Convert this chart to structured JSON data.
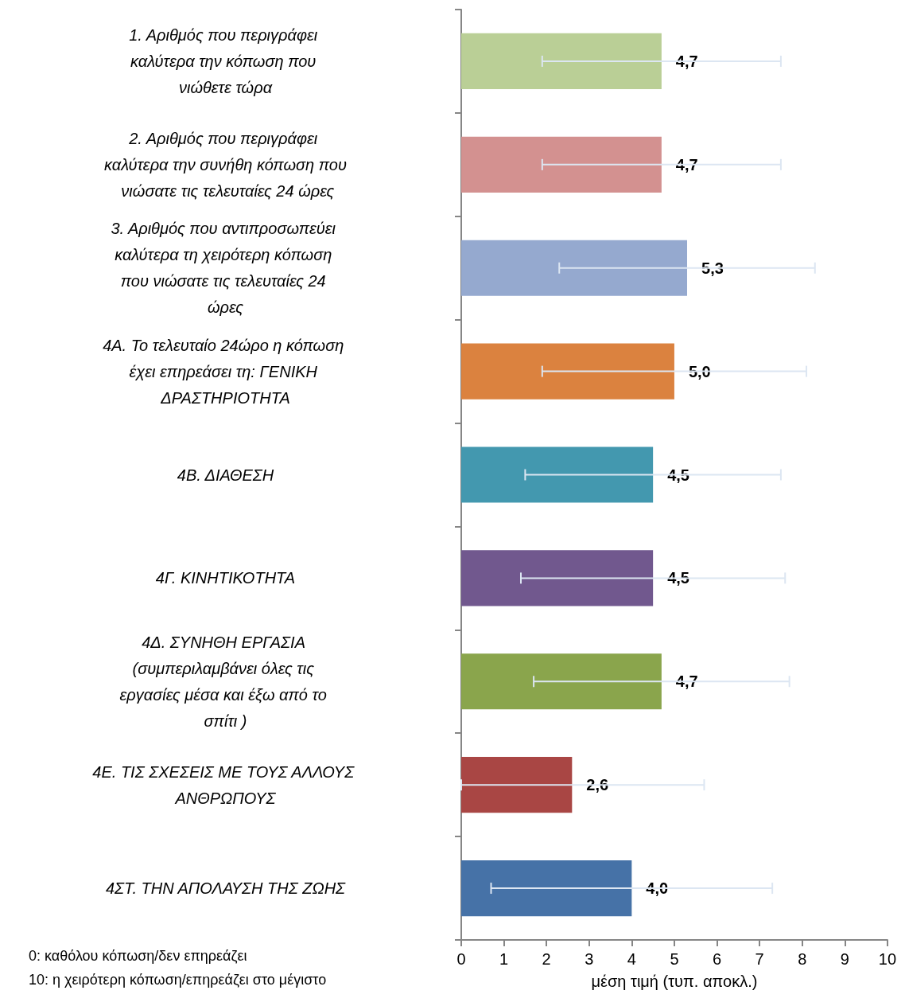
{
  "chart_data": {
    "type": "bar",
    "orientation": "horizontal",
    "xlabel": "μέση τιμή (τυπ. αποκλ.)",
    "categories": [
      "1. Αριθμός που περιγράφει καλύτερα την κόπωση που νιώθετε τώρα",
      "2. Αριθμός που περιγράφει καλύτερα την συνήθη κόπωση που νιώσατε τις τελευταίες 24 ώρες",
      "3. Αριθμός που αντιπροσωπεύει καλύτερα τη χειρότερη κόπωση που νιώσατε τις τελευταίες 24 ώρες",
      "4Α. Το τελευταίο 24ώρο η κόπωση έχει επηρεάσει τη: ΓΕΝΙΚΗ ΔΡΑΣΤΗΡΙΟΤΗΤΑ",
      "4Β. ΔΙΑΘΕΣΗ",
      "4Γ. ΚΙΝΗΤΙΚΟΤΗΤΑ",
      "4Δ. ΣΥΝΗΘΗ ΕΡΓΑΣΙΑ (συμπεριλαμβάνει όλες τις εργασίες μέσα και έξω από το σπίτι )",
      "4Ε. ΤΙΣ ΣΧΕΣΕΙΣ ΜΕ ΤΟΥΣ ΑΛΛΟΥΣ ΑΝΘΡΩΠΟΥΣ",
      "4ΣΤ. ΤΗΝ ΑΠΟΛΑΥΣΗ ΤΗΣ ΖΩΗΣ"
    ],
    "values": [
      4.7,
      4.7,
      5.3,
      5.0,
      4.5,
      4.5,
      4.7,
      2.6,
      4.0
    ],
    "value_labels": [
      "4,7",
      "4,7",
      "5,3",
      "5,0",
      "4,5",
      "4,5",
      "4,7",
      "2,6",
      "4,0"
    ],
    "errors": [
      2.8,
      2.8,
      3.0,
      3.1,
      3.0,
      3.1,
      3.0,
      [
        0,
        5.7
      ],
      3.3
    ],
    "colors": [
      "#bacf96",
      "#d39190",
      "#95a9cf",
      "#db823f",
      "#4398af",
      "#71588e",
      "#8aa54c",
      "#a94644",
      "#4672a7"
    ],
    "xlim": [
      0,
      10
    ],
    "xticks": [
      0,
      1,
      2,
      3,
      4,
      5,
      6,
      7,
      8,
      9,
      10
    ],
    "annotations": [
      "0: καθόλου κόπωση/δεν επηρεάζει",
      "10: η χειρότερη κόπωση/επηρεάζει στο μέγιστο"
    ]
  }
}
